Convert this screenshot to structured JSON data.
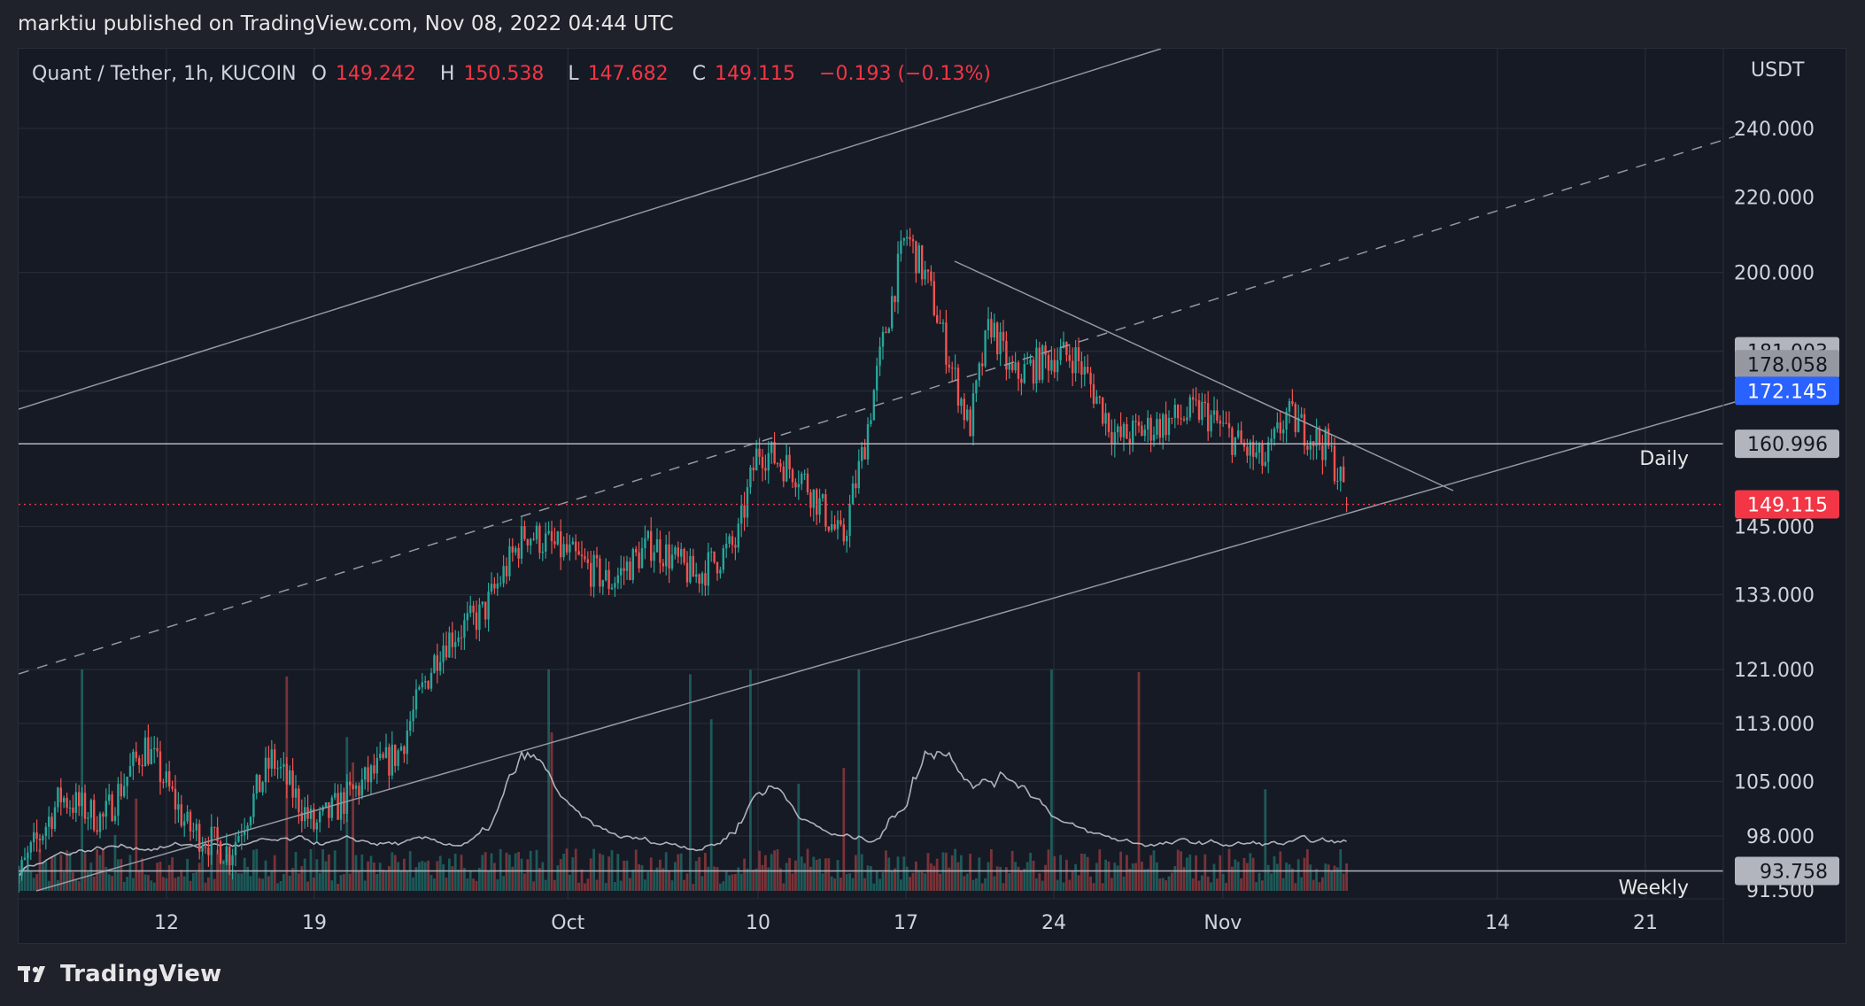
{
  "header": {
    "publisher": "marktiu published on TradingView.com, Nov 08, 2022 04:44 UTC"
  },
  "legend": {
    "symbol": "Quant / Tether, 1h, KUCOIN",
    "o_label": "O",
    "o_value": "149.242",
    "h_label": "H",
    "h_value": "150.538",
    "l_label": "L",
    "l_value": "147.682",
    "c_label": "C",
    "c_value": "149.115",
    "change": "−0.193 (−0.13%)"
  },
  "footer": {
    "brand": "TradingView"
  },
  "colors": {
    "up": "#26a69a",
    "down": "#ef5350",
    "background": "#161a25",
    "grid": "#262b36",
    "last_price": "#f23645",
    "blue_tag": "#2962ff",
    "trend_lines": "#9598a1"
  },
  "chart_data": {
    "type": "candlestick",
    "symbol": "QNT/USDT",
    "interval": "1h",
    "exchange": "KUCOIN",
    "currency": "USDT",
    "x_ticks": [
      "12",
      "19",
      "Oct",
      "10",
      "17",
      "24",
      "Nov",
      "14",
      "21"
    ],
    "y_ticks": [
      "240.000",
      "220.000",
      "200.000",
      "145.000",
      "133.000",
      "121.000",
      "113.000",
      "105.000",
      "98.000"
    ],
    "y_scale": "log",
    "price_tags": [
      {
        "value": "181.003",
        "style": "gray"
      },
      {
        "value": "178.058",
        "style": "gray"
      },
      {
        "value": "172.145",
        "style": "blue"
      },
      {
        "value": "160.996",
        "style": "gray",
        "line": "Daily"
      },
      {
        "value": "149.115",
        "style": "red",
        "line": "last price"
      },
      {
        "value": "93.758",
        "style": "gray",
        "line": "Weekly"
      }
    ],
    "level_labels": [
      "Daily",
      "Weekly"
    ],
    "bottom_tick_partial": "91.500",
    "price_path": [
      [
        "Sep 05",
        93
      ],
      [
        "Sep 07",
        103
      ],
      [
        "Sep 09",
        100
      ],
      [
        "Sep 11",
        110
      ],
      [
        "Sep 13",
        99
      ],
      [
        "Sep 15",
        96
      ],
      [
        "Sep 17",
        108
      ],
      [
        "Sep 19",
        99
      ],
      [
        "Sep 21",
        104
      ],
      [
        "Sep 23",
        109
      ],
      [
        "Sep 25",
        125
      ],
      [
        "Sep 27",
        130
      ],
      [
        "Sep 29",
        144
      ],
      [
        "Oct 01",
        140
      ],
      [
        "Oct 03",
        135
      ],
      [
        "Oct 05",
        142
      ],
      [
        "Oct 07",
        136
      ],
      [
        "Oct 09",
        142
      ],
      [
        "Oct 10",
        160
      ],
      [
        "Oct 12",
        155
      ],
      [
        "Oct 14",
        142
      ],
      [
        "Oct 15",
        160
      ],
      [
        "Oct 16",
        185
      ],
      [
        "Oct 17",
        210
      ],
      [
        "Oct 18",
        198
      ],
      [
        "Oct 19",
        180
      ],
      [
        "Oct 20",
        164
      ],
      [
        "Oct 21",
        188
      ],
      [
        "Oct 22",
        175
      ],
      [
        "Oct 24",
        180
      ],
      [
        "Oct 25",
        180
      ],
      [
        "Oct 27",
        162
      ],
      [
        "Oct 29",
        165
      ],
      [
        "Oct 31",
        168
      ],
      [
        "Nov 02",
        160
      ],
      [
        "Nov 03",
        157
      ],
      [
        "Nov 04",
        167
      ],
      [
        "Nov 06",
        160
      ],
      [
        "Nov 07",
        149.1
      ]
    ],
    "last": {
      "open": 149.242,
      "high": 150.538,
      "low": 147.682,
      "close": 149.115
    }
  }
}
